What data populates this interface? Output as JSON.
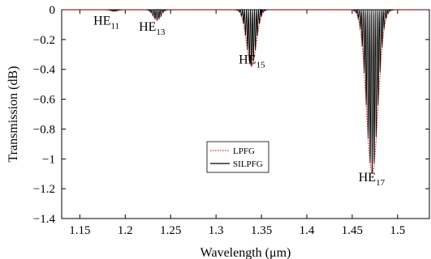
{
  "chart_data": {
    "type": "line",
    "xlabel": "Wavelength (μm)",
    "ylabel": "Transmission (dB)",
    "xlim": [
      1.13,
      1.535
    ],
    "ylim": [
      -1.4,
      0
    ],
    "xticks": [
      "1.15",
      "1.2",
      "1.25",
      "1.3",
      "1.35",
      "1.4",
      "1.45",
      "1.5"
    ],
    "yticks": [
      "0",
      "−0.2",
      "−0.4",
      "−0.6",
      "−0.8",
      "−1",
      "−1.2",
      "−1.4"
    ],
    "legend": {
      "position": "center",
      "entries": [
        "LPFG",
        "SILPFG"
      ]
    },
    "series": [
      {
        "name": "LPFG",
        "style": "dotted",
        "color": "#d62728",
        "dips": [
          {
            "center": 1.188,
            "depth": 0.01,
            "width": 0.006
          },
          {
            "center": 1.235,
            "depth": 0.07,
            "width": 0.006
          },
          {
            "center": 1.339,
            "depth": 0.38,
            "width": 0.0075
          },
          {
            "center": 1.472,
            "depth": 1.1,
            "width": 0.009
          }
        ]
      },
      {
        "name": "SILPFG",
        "style": "solid",
        "color": "#000000",
        "dips": [
          {
            "center": 1.188,
            "depth": 0.01,
            "width": 0.006
          },
          {
            "center": 1.235,
            "depth": 0.07,
            "width": 0.006
          },
          {
            "center": 1.339,
            "depth": 0.38,
            "width": 0.0075
          },
          {
            "center": 1.472,
            "depth": 1.1,
            "width": 0.009
          }
        ],
        "fringe_period": 0.0022
      }
    ],
    "annotations": [
      {
        "base": "HE",
        "sub": "11",
        "x": 1.165,
        "y": -0.1
      },
      {
        "base": "HE",
        "sub": "13",
        "x": 1.215,
        "y": -0.14
      },
      {
        "base": "HE",
        "sub": "15",
        "x": 1.325,
        "y": -0.36
      },
      {
        "base": "HE",
        "sub": "17",
        "x": 1.457,
        "y": -1.15
      }
    ]
  }
}
